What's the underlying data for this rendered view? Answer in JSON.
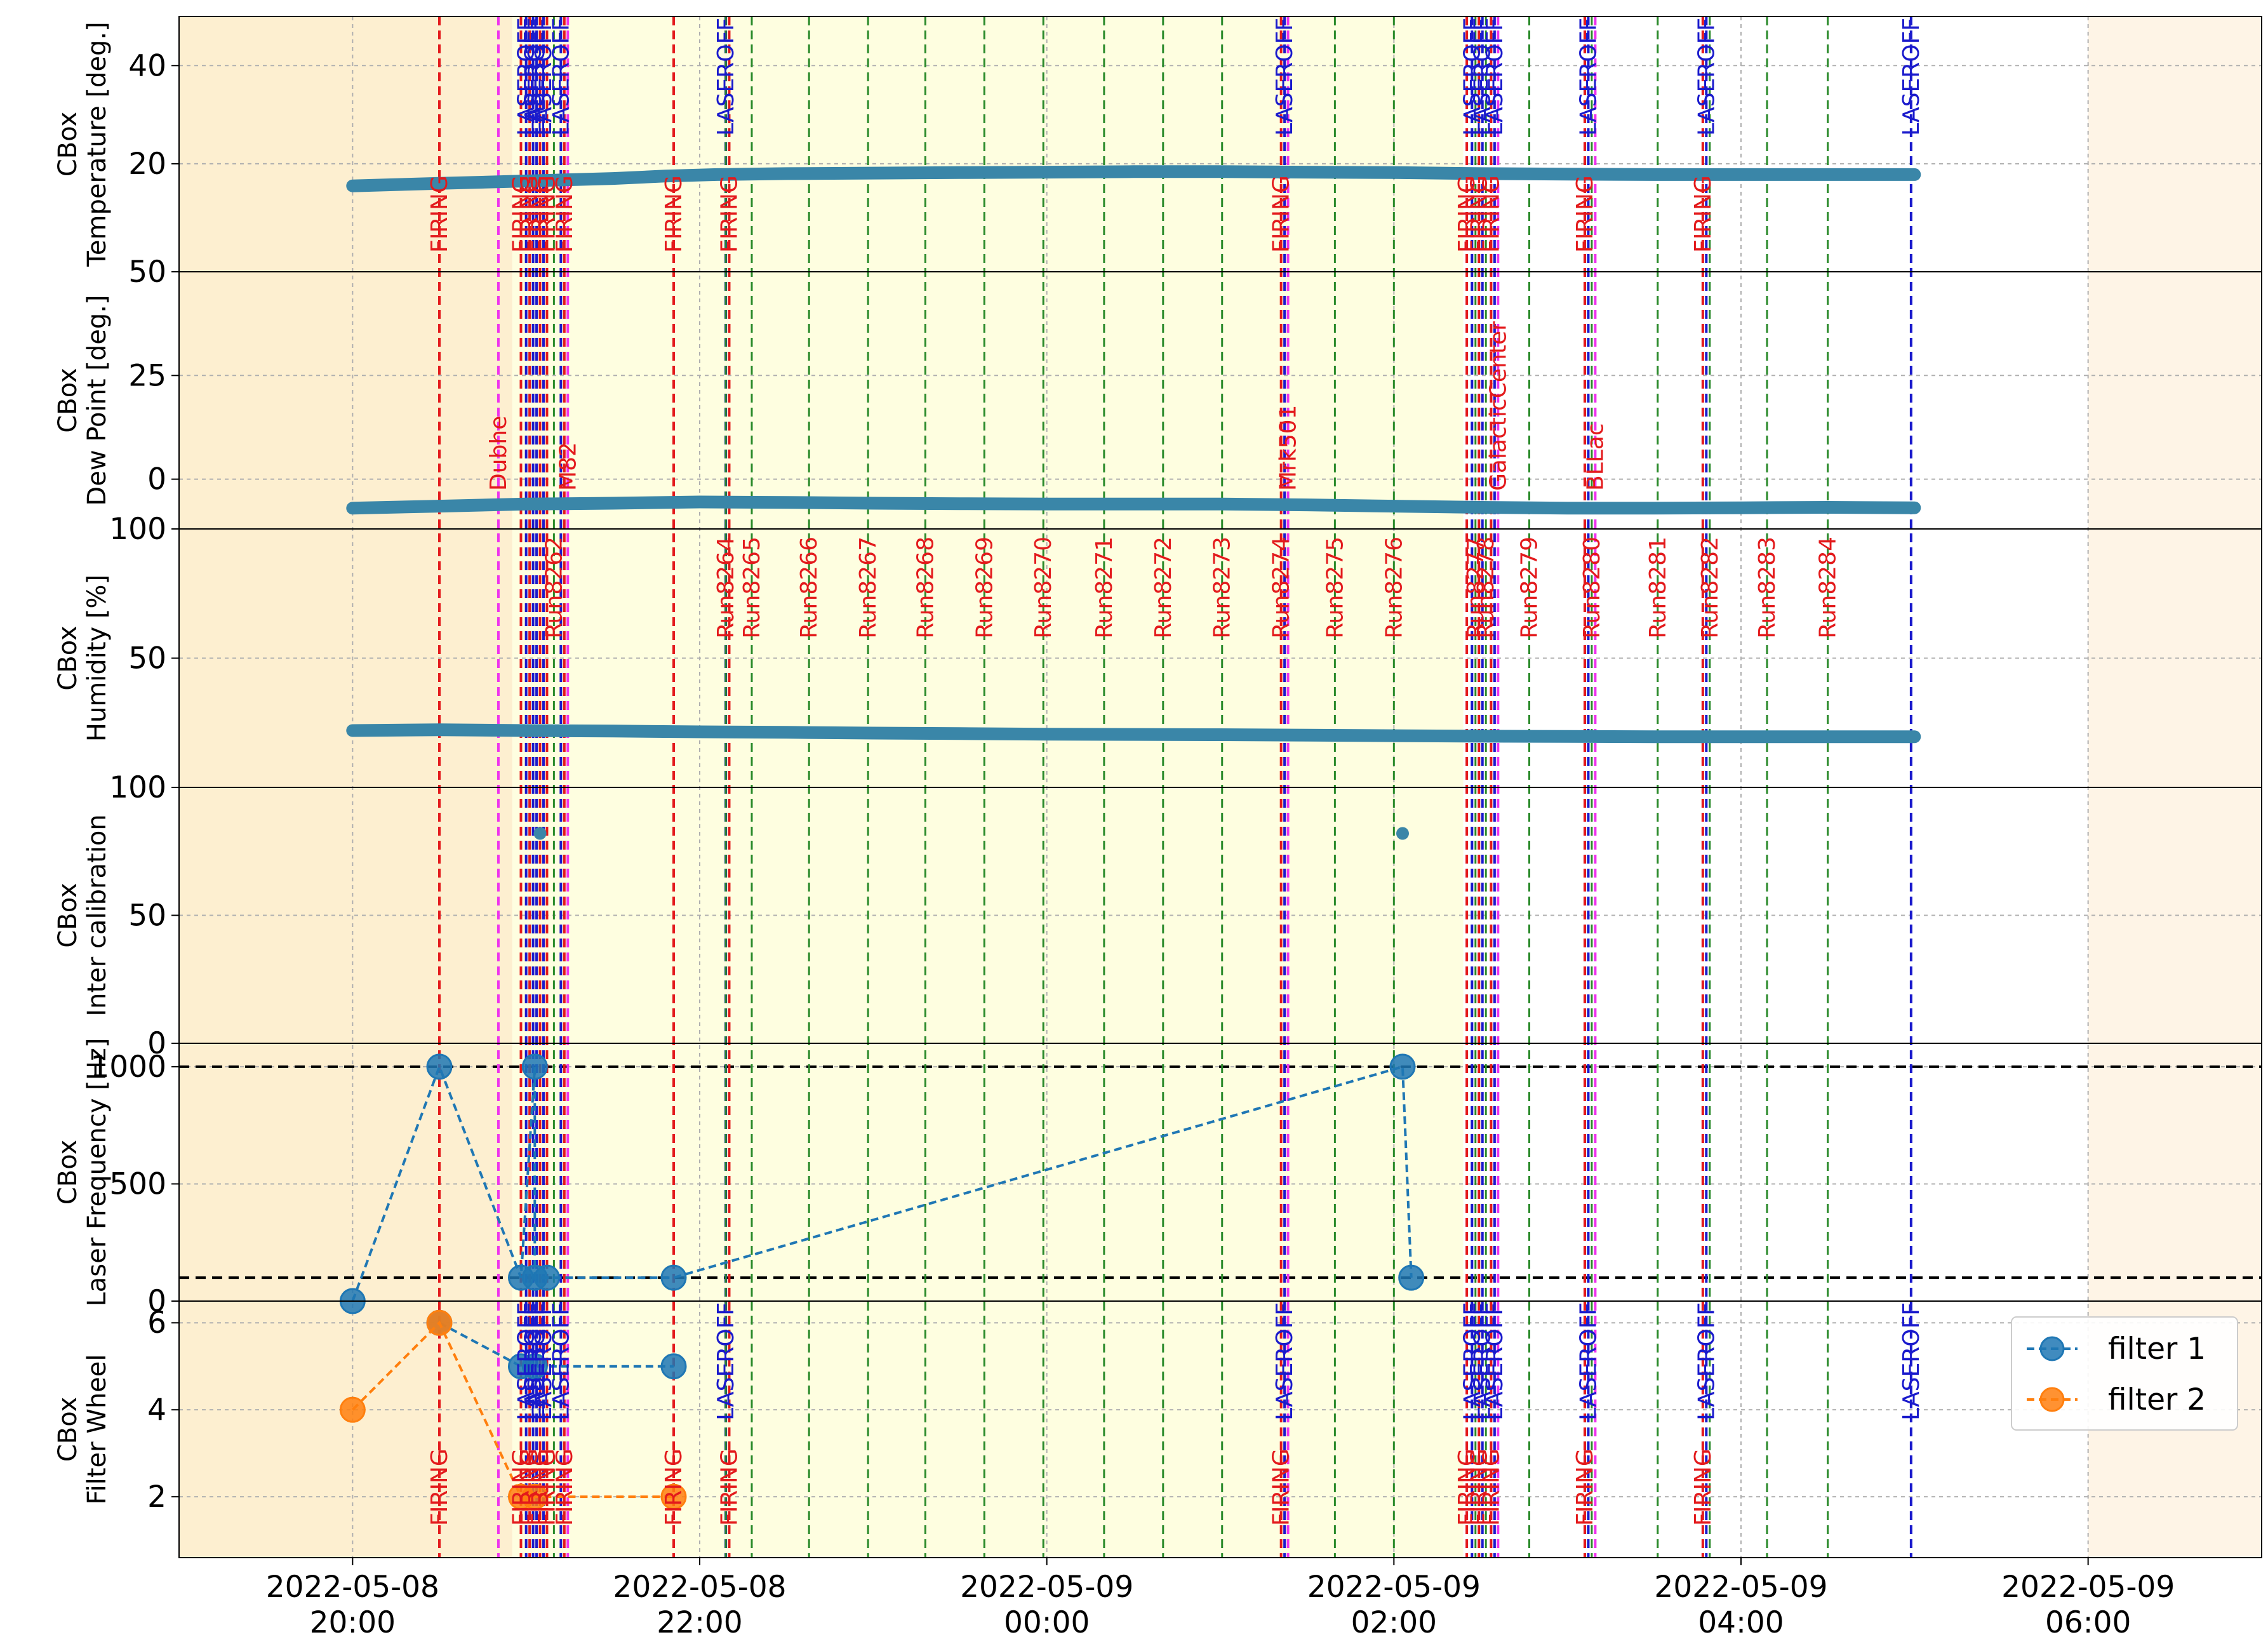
{
  "chart_data": {
    "type": "line",
    "x_ticks": [
      {
        "t": 20,
        "label": "2022-05-08\n20:00"
      },
      {
        "t": 22,
        "label": "2022-05-08\n22:00"
      },
      {
        "t": 24,
        "label": "2022-05-09\n00:00"
      },
      {
        "t": 26,
        "label": "2022-05-09\n02:00"
      },
      {
        "t": 28,
        "label": "2022-05-09\n04:00"
      },
      {
        "t": 30,
        "label": "2022-05-09\n06:00"
      }
    ],
    "x_range_hours": [
      19.0,
      31.0
    ],
    "time_origin": "2022-05-08 00:00",
    "background_spans": [
      {
        "from": 19.0,
        "to": 20.92,
        "color": "#fdefd0"
      },
      {
        "from": 20.92,
        "to": 26.4,
        "color": "#fefee0"
      },
      {
        "from": 26.4,
        "to": 30.0,
        "color": "#ffffff"
      },
      {
        "from": 30.0,
        "to": 31.0,
        "color": "#fef4e6"
      }
    ],
    "panels": [
      {
        "key": "temp",
        "ylabel": [
          "CBox",
          "Temperature [deg.]"
        ],
        "ylim": [
          -2,
          50
        ],
        "yticks": [
          20,
          40
        ],
        "hlines": [],
        "show_labels": "firing_top"
      },
      {
        "key": "dew",
        "ylabel": [
          "CBox",
          "Dew Point [deg.]"
        ],
        "ylim": [
          -12,
          50
        ],
        "yticks": [
          0,
          25,
          50
        ],
        "hlines": [],
        "show_labels": "runs"
      },
      {
        "key": "hum",
        "ylabel": [
          "CBox",
          "Humidity [%]"
        ],
        "ylim": [
          0,
          100
        ],
        "yticks": [
          50,
          100
        ],
        "hlines": [],
        "show_labels": "none"
      },
      {
        "key": "ic",
        "ylabel": [
          "CBox",
          "Inter calibration"
        ],
        "ylim": [
          0,
          100
        ],
        "yticks": [
          0,
          50,
          100
        ],
        "hlines": [],
        "show_labels": "none"
      },
      {
        "key": "freq",
        "ylabel": [
          "CBox",
          "Laser Frequency [Hz]"
        ],
        "ylim": [
          0,
          1100
        ],
        "yticks": [
          0,
          500,
          1000
        ],
        "hlines": [
          100,
          1000
        ],
        "show_labels": "none"
      },
      {
        "key": "fw",
        "ylabel": [
          "CBox",
          "Filter Wheel"
        ],
        "ylim": [
          0.6,
          6.5
        ],
        "yticks": [
          2,
          4,
          6
        ],
        "hlines": [],
        "show_labels": "bottom"
      }
    ],
    "series": [
      {
        "panel": "temp",
        "kind": "band",
        "color": "#3a86a8",
        "points": [
          [
            20.0,
            15.5
          ],
          [
            20.5,
            16.0
          ],
          [
            21.0,
            16.5
          ],
          [
            21.5,
            17.0
          ],
          [
            21.8,
            17.5
          ],
          [
            22.1,
            17.8
          ],
          [
            22.5,
            18.0
          ],
          [
            23.0,
            18.1
          ],
          [
            23.5,
            18.2
          ],
          [
            24.0,
            18.3
          ],
          [
            24.5,
            18.4
          ],
          [
            25.0,
            18.4
          ],
          [
            25.5,
            18.3
          ],
          [
            26.0,
            18.2
          ],
          [
            26.5,
            18.0
          ],
          [
            27.0,
            17.9
          ],
          [
            27.5,
            17.8
          ],
          [
            28.0,
            17.8
          ],
          [
            28.5,
            17.8
          ],
          [
            29.0,
            17.8
          ]
        ]
      },
      {
        "panel": "dew",
        "kind": "band",
        "color": "#3a86a8",
        "points": [
          [
            20.0,
            -7.0
          ],
          [
            20.5,
            -6.5
          ],
          [
            21.0,
            -6.0
          ],
          [
            21.5,
            -5.8
          ],
          [
            22.0,
            -5.5
          ],
          [
            22.5,
            -5.6
          ],
          [
            23.0,
            -5.8
          ],
          [
            23.5,
            -5.9
          ],
          [
            24.0,
            -6.0
          ],
          [
            24.5,
            -6.0
          ],
          [
            25.0,
            -6.0
          ],
          [
            25.5,
            -6.2
          ],
          [
            26.0,
            -6.5
          ],
          [
            26.5,
            -6.8
          ],
          [
            27.0,
            -7.0
          ],
          [
            27.5,
            -7.0
          ],
          [
            28.0,
            -6.9
          ],
          [
            28.5,
            -6.8
          ],
          [
            29.0,
            -6.9
          ]
        ]
      },
      {
        "panel": "hum",
        "kind": "band",
        "color": "#3a86a8",
        "points": [
          [
            20.0,
            22.0
          ],
          [
            20.5,
            22.3
          ],
          [
            21.0,
            22.0
          ],
          [
            21.5,
            21.8
          ],
          [
            22.0,
            21.5
          ],
          [
            22.5,
            21.3
          ],
          [
            23.0,
            21.0
          ],
          [
            23.5,
            20.8
          ],
          [
            24.0,
            20.6
          ],
          [
            24.5,
            20.5
          ],
          [
            25.0,
            20.4
          ],
          [
            25.5,
            20.2
          ],
          [
            26.0,
            20.0
          ],
          [
            26.5,
            19.8
          ],
          [
            27.0,
            19.7
          ],
          [
            27.5,
            19.6
          ],
          [
            28.0,
            19.6
          ],
          [
            28.5,
            19.6
          ],
          [
            29.0,
            19.6
          ]
        ]
      },
      {
        "panel": "ic",
        "kind": "points",
        "color": "#3a86a8",
        "points": [
          [
            21.08,
            82
          ],
          [
            26.05,
            82
          ]
        ]
      },
      {
        "panel": "freq",
        "name": "filter 1",
        "kind": "line",
        "color": "#1f77b4",
        "points": [
          [
            20.0,
            0
          ],
          [
            20.5,
            1000
          ],
          [
            20.97,
            100
          ],
          [
            21.05,
            1000
          ],
          [
            21.05,
            100
          ],
          [
            21.12,
            100
          ],
          [
            21.85,
            100
          ],
          [
            26.05,
            1000
          ],
          [
            26.1,
            100
          ]
        ]
      },
      {
        "panel": "fw",
        "name": "filter 1",
        "kind": "line",
        "color": "#1f77b4",
        "points": [
          [
            20.5,
            6
          ],
          [
            20.97,
            5
          ],
          [
            21.05,
            5
          ],
          [
            21.85,
            5
          ]
        ]
      },
      {
        "panel": "fw",
        "name": "filter 2",
        "kind": "line",
        "color": "#ff7f0e",
        "points": [
          [
            20.0,
            4
          ],
          [
            20.5,
            6
          ],
          [
            20.97,
            2
          ],
          [
            21.05,
            2
          ],
          [
            21.85,
            2
          ]
        ]
      }
    ],
    "vlines": [
      {
        "t": 20.5,
        "color": "#e31a1c",
        "label": "FIRING",
        "group": "firing"
      },
      {
        "t": 20.84,
        "color": "#ee33ee",
        "label": "Dubhe",
        "group": "source"
      },
      {
        "t": 20.97,
        "color": "#e31a1c",
        "label": "FIRING",
        "group": "firing"
      },
      {
        "t": 21.0,
        "color": "#1a1acc",
        "label": "LASEROFF",
        "group": "laseroff"
      },
      {
        "t": 21.02,
        "color": "#e31a1c",
        "label": "FIRING",
        "group": "firing"
      },
      {
        "t": 21.04,
        "color": "#1a1acc",
        "label": "LASEROFF",
        "group": "laseroff"
      },
      {
        "t": 21.06,
        "color": "#1a1acc",
        "label": "LASEROFF",
        "group": "laseroff"
      },
      {
        "t": 21.08,
        "color": "#e31a1c",
        "label": "FIRING",
        "group": "firing"
      },
      {
        "t": 21.1,
        "color": "#1a1acc",
        "label": "LASEROFF",
        "group": "laseroff"
      },
      {
        "t": 21.12,
        "color": "#e31a1c",
        "label": "FIRING",
        "group": "firing"
      },
      {
        "t": 21.16,
        "color": "#2a8a2a",
        "label": "Run8262",
        "group": "run"
      },
      {
        "t": 21.2,
        "color": "#1a1acc",
        "label": "LASEROFF",
        "group": "laseroff"
      },
      {
        "t": 21.22,
        "color": "#e31a1c",
        "label": "FIRING",
        "group": "firing"
      },
      {
        "t": 21.24,
        "color": "#ee33ee",
        "label": "M82",
        "group": "source"
      },
      {
        "t": 21.85,
        "color": "#e31a1c",
        "label": "FIRING",
        "group": "firing"
      },
      {
        "t": 22.15,
        "color": "#1a1acc",
        "label": "LASEROFF",
        "group": "laseroff"
      },
      {
        "t": 22.17,
        "color": "#e31a1c",
        "label": "FIRING",
        "group": "firing"
      },
      {
        "t": 22.15,
        "color": "#2a8a2a",
        "label": "Run8264",
        "group": "run"
      },
      {
        "t": 22.3,
        "color": "#2a8a2a",
        "label": "Run8265",
        "group": "run"
      },
      {
        "t": 22.63,
        "color": "#2a8a2a",
        "label": "Run8266",
        "group": "run"
      },
      {
        "t": 22.97,
        "color": "#2a8a2a",
        "label": "Run8267",
        "group": "run"
      },
      {
        "t": 23.3,
        "color": "#2a8a2a",
        "label": "Run8268",
        "group": "run"
      },
      {
        "t": 23.64,
        "color": "#2a8a2a",
        "label": "Run8269",
        "group": "run"
      },
      {
        "t": 23.98,
        "color": "#2a8a2a",
        "label": "Run8270",
        "group": "run"
      },
      {
        "t": 24.33,
        "color": "#2a8a2a",
        "label": "Run8271",
        "group": "run"
      },
      {
        "t": 24.67,
        "color": "#2a8a2a",
        "label": "Run8272",
        "group": "run"
      },
      {
        "t": 25.01,
        "color": "#2a8a2a",
        "label": "Run8273",
        "group": "run"
      },
      {
        "t": 25.35,
        "color": "#2a8a2a",
        "label": "Run8274",
        "group": "run"
      },
      {
        "t": 25.35,
        "color": "#e31a1c",
        "label": "FIRING",
        "group": "firing"
      },
      {
        "t": 25.37,
        "color": "#1a1acc",
        "label": "LASEROFF",
        "group": "laseroff"
      },
      {
        "t": 25.39,
        "color": "#ee33ee",
        "label": "Mrk501",
        "group": "source"
      },
      {
        "t": 25.66,
        "color": "#2a8a2a",
        "label": "Run8275",
        "group": "run"
      },
      {
        "t": 26.0,
        "color": "#2a8a2a",
        "label": "Run8276",
        "group": "run"
      },
      {
        "t": 26.42,
        "color": "#e31a1c",
        "label": "FIRING",
        "group": "firing"
      },
      {
        "t": 26.45,
        "color": "#1a1acc",
        "label": "LASEROFF",
        "group": "laseroff"
      },
      {
        "t": 26.47,
        "color": "#2a8a2a",
        "label": "Run8277",
        "group": "run"
      },
      {
        "t": 26.49,
        "color": "#e31a1c",
        "label": "FIRING",
        "group": "firing"
      },
      {
        "t": 26.51,
        "color": "#1a1acc",
        "label": "LASEROFF",
        "group": "laseroff"
      },
      {
        "t": 26.53,
        "color": "#2a8a2a",
        "label": "Run8278",
        "group": "run"
      },
      {
        "t": 26.56,
        "color": "#e31a1c",
        "label": "FIRING",
        "group": "firing"
      },
      {
        "t": 26.58,
        "color": "#1a1acc",
        "label": "LASEROFF",
        "group": "laseroff"
      },
      {
        "t": 26.6,
        "color": "#ee33ee",
        "label": "GalacticCenter",
        "group": "source"
      },
      {
        "t": 26.78,
        "color": "#2a8a2a",
        "label": "Run8279",
        "group": "run"
      },
      {
        "t": 27.1,
        "color": "#e31a1c",
        "label": "FIRING",
        "group": "firing"
      },
      {
        "t": 27.12,
        "color": "#1a1acc",
        "label": "LASEROFF",
        "group": "laseroff"
      },
      {
        "t": 27.14,
        "color": "#2a8a2a",
        "label": "Run8280",
        "group": "run"
      },
      {
        "t": 27.16,
        "color": "#ee33ee",
        "label": "BLLac",
        "group": "source"
      },
      {
        "t": 27.52,
        "color": "#2a8a2a",
        "label": "Run8281",
        "group": "run"
      },
      {
        "t": 27.78,
        "color": "#e31a1c",
        "label": "FIRING",
        "group": "firing"
      },
      {
        "t": 27.8,
        "color": "#1a1acc",
        "label": "LASEROFF",
        "group": "laseroff"
      },
      {
        "t": 27.82,
        "color": "#2a8a2a",
        "label": "Run8282",
        "group": "run"
      },
      {
        "t": 28.15,
        "color": "#2a8a2a",
        "label": "Run8283",
        "group": "run"
      },
      {
        "t": 28.5,
        "color": "#2a8a2a",
        "label": "Run8284",
        "group": "run"
      },
      {
        "t": 28.98,
        "color": "#1a1acc",
        "label": "LASEROFF",
        "group": "laseroff"
      }
    ],
    "legend": {
      "position": "lower right of bottom panel",
      "entries": [
        {
          "name": "filter 1",
          "color": "#1f77b4"
        },
        {
          "name": "filter 2",
          "color": "#ff7f0e"
        }
      ]
    },
    "grid": true
  }
}
